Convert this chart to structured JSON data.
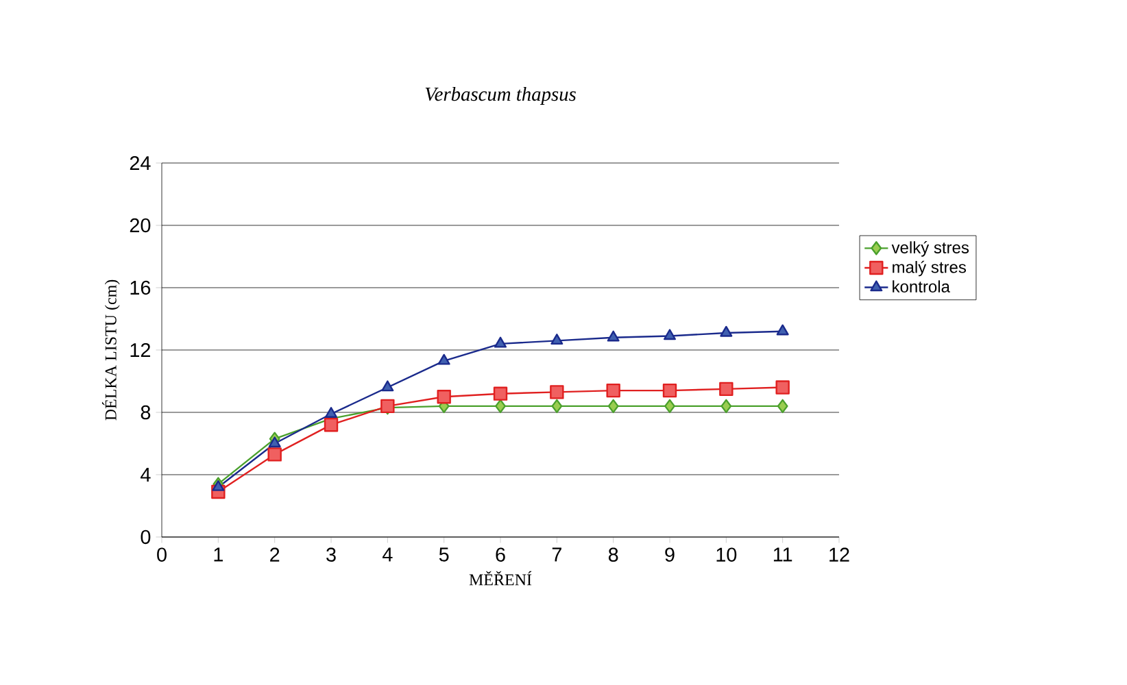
{
  "chart_data": {
    "type": "line",
    "title": "Verbascum thapsus",
    "xlabel": "MĚŘENÍ",
    "ylabel": "DÉLKA LISTU (cm)",
    "x": [
      1,
      2,
      3,
      4,
      5,
      6,
      7,
      8,
      9,
      10,
      11
    ],
    "series": [
      {
        "name": "velký stres",
        "color": "#4aa02c",
        "marker": "diamond",
        "values": [
          3.4,
          6.3,
          7.6,
          8.3,
          8.4,
          8.4,
          8.4,
          8.4,
          8.4,
          8.4,
          8.4
        ]
      },
      {
        "name": "malý stres",
        "color": "#e02020",
        "marker": "square",
        "values": [
          2.9,
          5.3,
          7.2,
          8.4,
          9.0,
          9.2,
          9.3,
          9.4,
          9.4,
          9.5,
          9.6
        ]
      },
      {
        "name": "kontrola",
        "color": "#1a2a8c",
        "marker": "triangle",
        "values": [
          3.2,
          6.0,
          7.9,
          9.6,
          11.3,
          12.4,
          12.6,
          12.8,
          12.9,
          13.1,
          13.2
        ]
      }
    ],
    "xlim": [
      0,
      12
    ],
    "xticks": [
      0,
      1,
      2,
      3,
      4,
      5,
      6,
      7,
      8,
      9,
      10,
      11,
      12
    ],
    "ylim": [
      0,
      24
    ],
    "yticks": [
      0,
      4,
      8,
      12,
      16,
      20,
      24
    ],
    "grid": "y",
    "legend": "right"
  }
}
